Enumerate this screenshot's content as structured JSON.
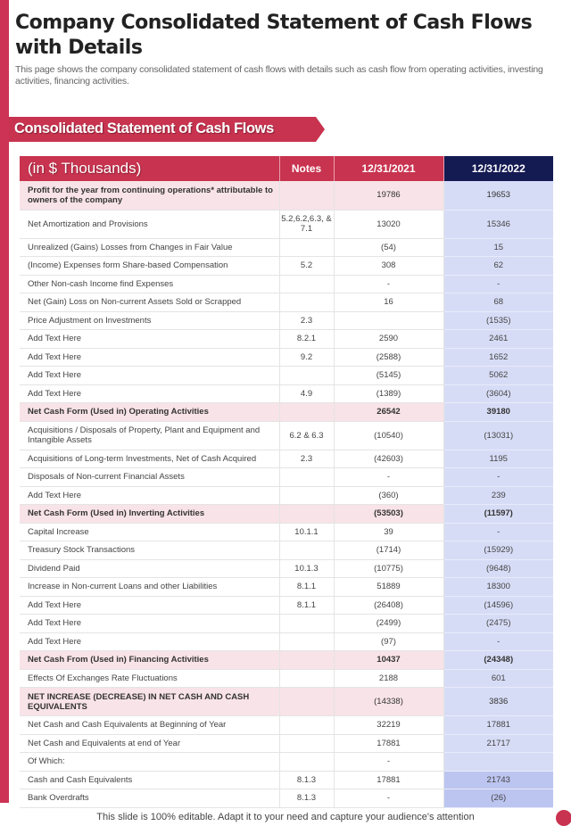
{
  "title": "Company Consolidated Statement of Cash Flows with Details",
  "subtitle": "This page shows the company consolidated statement of cash flows with details such as cash flow from operating activities, investing activities, financing activities.",
  "banner": "Consolidated Statement of Cash Flows",
  "colors": {
    "accent": "#c8334f",
    "dark_header": "#141a52",
    "col2022": "#d7dcf6",
    "bold_row": "#f8e3e8"
  },
  "table": {
    "headers": [
      "(in $ Thousands)",
      "Notes",
      "12/31/2021",
      "12/31/2022"
    ],
    "rows": [
      {
        "label": "Profit for the year from continuing operations* attributable to owners of the company",
        "notes": "",
        "v2021": "19786",
        "v2022": "19653",
        "style": "pink dbl"
      },
      {
        "label": "Net Amortization and Provisions",
        "notes": "5.2,6.2,6.3, & 7.1",
        "v2021": "13020",
        "v2022": "15346",
        "style": "dbl"
      },
      {
        "label": "Unrealized (Gains) Losses from Changes in Fair Value",
        "notes": "",
        "v2021": "(54)",
        "v2022": "15",
        "style": ""
      },
      {
        "label": "(Income) Expenses form Share-based Compensation",
        "notes": "5.2",
        "v2021": "308",
        "v2022": "62",
        "style": ""
      },
      {
        "label": "Other Non-cash Income find Expenses",
        "notes": "",
        "v2021": "-",
        "v2022": "-",
        "style": ""
      },
      {
        "label": "Net (Gain) Loss on Non-current Assets Sold or Scrapped",
        "notes": "",
        "v2021": "16",
        "v2022": "68",
        "style": ""
      },
      {
        "label": "Price Adjustment on Investments",
        "notes": "2.3",
        "v2021": "",
        "v2022": "(1535)",
        "style": ""
      },
      {
        "label": "Add Text Here",
        "notes": "8.2.1",
        "v2021": "2590",
        "v2022": "2461",
        "style": ""
      },
      {
        "label": "Add Text Here",
        "notes": "9.2",
        "v2021": "(2588)",
        "v2022": "1652",
        "style": ""
      },
      {
        "label": "Add Text Here",
        "notes": "",
        "v2021": "(5145)",
        "v2022": "5062",
        "style": ""
      },
      {
        "label": "Add Text Here",
        "notes": "4.9",
        "v2021": "(1389)",
        "v2022": "(3604)",
        "style": ""
      },
      {
        "label": "Net Cash Form (Used in) Operating Activities",
        "notes": "",
        "v2021": "26542",
        "v2022": "39180",
        "style": "bold"
      },
      {
        "label": "Acquisitions / Disposals of Property, Plant and Equipment and Intangible Assets",
        "notes": "6.2 & 6.3",
        "v2021": "(10540)",
        "v2022": "(13031)",
        "style": "dbl"
      },
      {
        "label": "Acquisitions of Long-term Investments, Net of Cash Acquired",
        "notes": "2.3",
        "v2021": "(42603)",
        "v2022": "1195",
        "style": ""
      },
      {
        "label": "Disposals of Non-current Financial Assets",
        "notes": "",
        "v2021": "-",
        "v2022": "-",
        "style": ""
      },
      {
        "label": "Add Text Here",
        "notes": "",
        "v2021": "(360)",
        "v2022": "239",
        "style": ""
      },
      {
        "label": "Net Cash Form (Used in) Inverting Activities",
        "notes": "",
        "v2021": "(53503)",
        "v2022": "(11597)",
        "style": "bold"
      },
      {
        "label": "Capital Increase",
        "notes": "10.1.1",
        "v2021": "39",
        "v2022": "-",
        "style": ""
      },
      {
        "label": "Treasury Stock Transactions",
        "notes": "",
        "v2021": "(1714)",
        "v2022": "(15929)",
        "style": ""
      },
      {
        "label": "Dividend Paid",
        "notes": "10.1.3",
        "v2021": "(10775)",
        "v2022": "(9648)",
        "style": ""
      },
      {
        "label": "Increase in Non-current Loans and other Liabilities",
        "notes": "8.1.1",
        "v2021": "51889",
        "v2022": "18300",
        "style": ""
      },
      {
        "label": "Add Text Here",
        "notes": "8.1.1",
        "v2021": "(26408)",
        "v2022": "(14596)",
        "style": ""
      },
      {
        "label": "Add Text Here",
        "notes": "",
        "v2021": "(2499)",
        "v2022": "(2475)",
        "style": ""
      },
      {
        "label": "Add Text Here",
        "notes": "",
        "v2021": "(97)",
        "v2022": "-",
        "style": ""
      },
      {
        "label": "Net Cash From (Used in) Financing Activities",
        "notes": "",
        "v2021": "10437",
        "v2022": "(24348)",
        "style": "bold"
      },
      {
        "label": "Effects Of Exchanges Rate Fluctuations",
        "notes": "",
        "v2021": "2188",
        "v2022": "601",
        "style": ""
      },
      {
        "label": "NET INCREASE (DECREASE) IN NET CASH AND CASH EQUIVALENTS",
        "notes": "",
        "v2021": "(14338)",
        "v2022": "3836",
        "style": "pink dbl caps"
      },
      {
        "label": "Net Cash and Cash Equivalents at Beginning of Year",
        "notes": "",
        "v2021": "32219",
        "v2022": "17881",
        "style": ""
      },
      {
        "label": "Net Cash and Equivalents at end of Year",
        "notes": "",
        "v2021": "17881",
        "v2022": "21717",
        "style": ""
      },
      {
        "label": "Of Which:",
        "notes": "",
        "v2021": "-",
        "v2022": "",
        "style": ""
      },
      {
        "label": "Cash and Cash Equivalents",
        "notes": "8.1.3",
        "v2021": "17881",
        "v2022": "21743",
        "style": "hl"
      },
      {
        "label": "Bank Overdrafts",
        "notes": "8.1.3",
        "v2021": "-",
        "v2022": "(26)",
        "style": "hl"
      }
    ]
  },
  "footer": "This slide is 100% editable. Adapt it to your need and capture your audience's attention"
}
